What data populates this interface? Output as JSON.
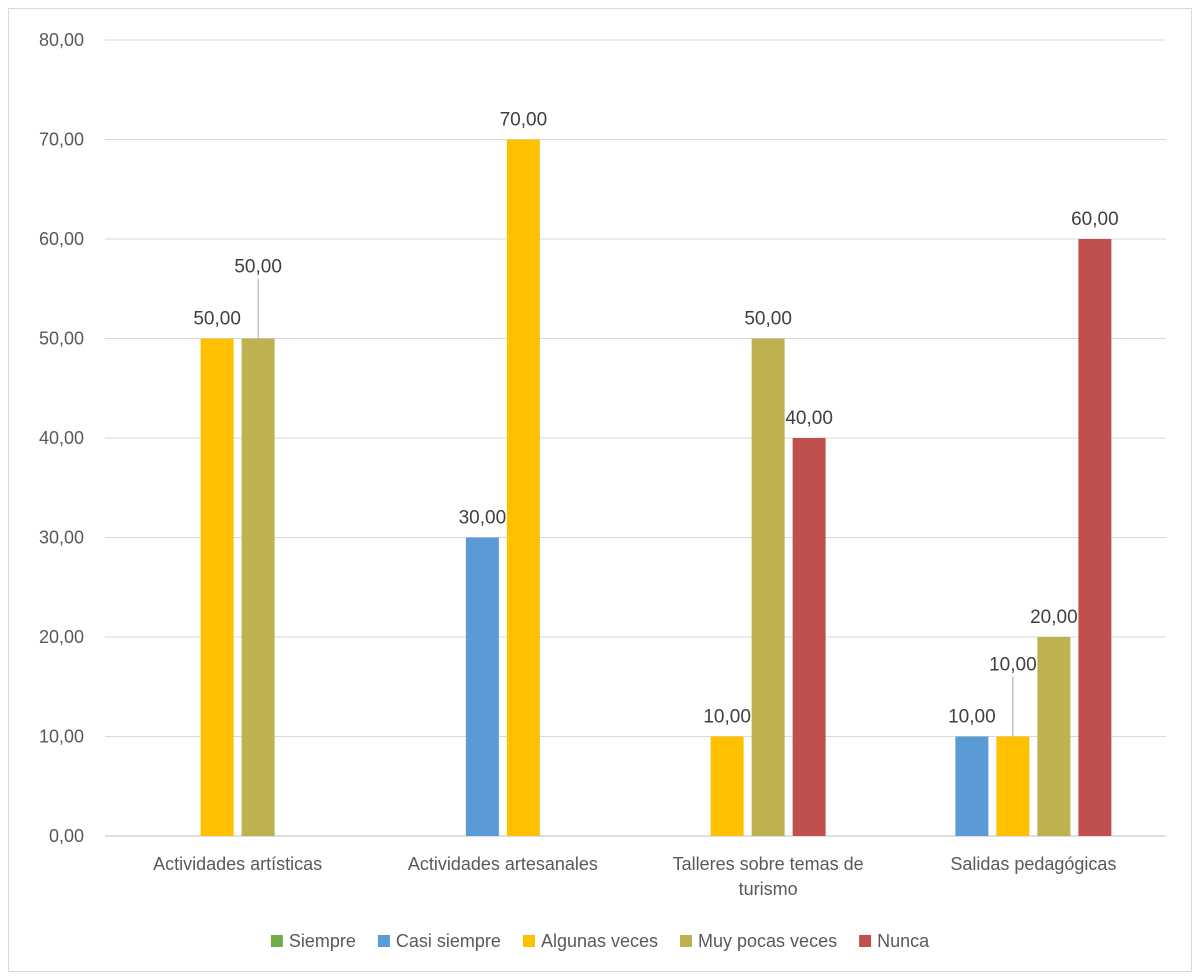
{
  "chart_data": {
    "type": "bar",
    "categories": [
      [
        "Actividades artísticas"
      ],
      [
        "Actividades artesanales"
      ],
      [
        "Talleres sobre temas de",
        "turismo"
      ],
      [
        "Salidas pedagógicas"
      ]
    ],
    "y_ticks": [
      "0,00",
      "10,00",
      "20,00",
      "30,00",
      "40,00",
      "50,00",
      "60,00",
      "70,00",
      "80,00"
    ],
    "ylim": [
      0,
      80
    ],
    "grid": true,
    "legend_position": "bottom",
    "series": [
      {
        "name": "Siempre",
        "color": "#70ad47",
        "values": [
          0,
          0,
          0,
          0
        ],
        "labels": [
          "",
          "",
          "",
          ""
        ]
      },
      {
        "name": "Casi siempre",
        "color": "#5b9bd5",
        "values": [
          0,
          30,
          0,
          10
        ],
        "labels": [
          "",
          "30,00",
          "",
          "10,00"
        ]
      },
      {
        "name": "Algunas veces",
        "color": "#ffc000",
        "values": [
          50,
          70,
          10,
          10
        ],
        "labels": [
          "50,00",
          "70,00",
          "10,00",
          "10,00"
        ]
      },
      {
        "name": "Muy pocas veces",
        "color": "#bfb14f",
        "values": [
          50,
          0,
          50,
          20
        ],
        "labels": [
          "50,00",
          "",
          "50,00",
          "20,00"
        ]
      },
      {
        "name": "Nunca",
        "color": "#c0504d",
        "values": [
          0,
          0,
          40,
          60
        ],
        "labels": [
          "",
          "",
          "40,00",
          "60,00"
        ]
      }
    ]
  }
}
